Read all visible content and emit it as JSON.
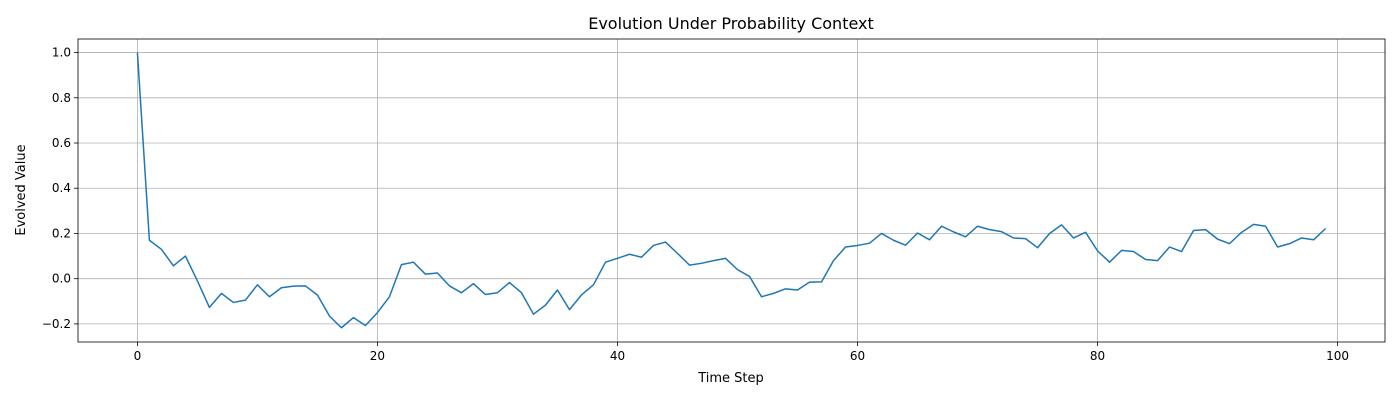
{
  "chart_data": {
    "type": "line",
    "title": "Evolution Under Probability Context",
    "xlabel": "Time Step",
    "ylabel": "Evolved Value",
    "xlim": [
      -4.95,
      103.95
    ],
    "ylim": [
      -0.28,
      1.06
    ],
    "xticks": [
      0,
      20,
      40,
      60,
      80,
      100
    ],
    "yticks": [
      -0.2,
      0.0,
      0.2,
      0.4,
      0.6,
      0.8,
      1.0
    ],
    "grid": true,
    "series_color": "#1f77b4",
    "x": [
      0,
      1,
      2,
      3,
      4,
      5,
      6,
      7,
      8,
      9,
      10,
      11,
      12,
      13,
      14,
      15,
      16,
      17,
      18,
      19,
      20,
      21,
      22,
      23,
      24,
      25,
      26,
      27,
      28,
      29,
      30,
      31,
      32,
      33,
      34,
      35,
      36,
      37,
      38,
      39,
      40,
      41,
      42,
      43,
      44,
      45,
      46,
      47,
      48,
      49,
      50,
      51,
      52,
      53,
      54,
      55,
      56,
      57,
      58,
      59,
      60,
      61,
      62,
      63,
      64,
      65,
      66,
      67,
      68,
      69,
      70,
      71,
      72,
      73,
      74,
      75,
      76,
      77,
      78,
      79,
      80,
      81,
      82,
      83,
      84,
      85,
      86,
      87,
      88,
      89,
      90,
      91,
      92,
      93,
      94,
      95,
      96,
      97,
      98,
      99
    ],
    "y": [
      1.0,
      0.17,
      0.13,
      0.057,
      0.1,
      -0.01,
      -0.127,
      -0.065,
      -0.105,
      -0.095,
      -0.027,
      -0.08,
      -0.04,
      -0.033,
      -0.032,
      -0.072,
      -0.165,
      -0.217,
      -0.172,
      -0.207,
      -0.15,
      -0.08,
      0.062,
      0.073,
      0.02,
      0.025,
      -0.032,
      -0.062,
      -0.022,
      -0.07,
      -0.062,
      -0.017,
      -0.062,
      -0.157,
      -0.117,
      -0.05,
      -0.137,
      -0.072,
      -0.027,
      0.073,
      0.09,
      0.108,
      0.095,
      0.147,
      0.162,
      0.112,
      0.06,
      0.068,
      0.08,
      0.09,
      0.04,
      0.01,
      -0.08,
      -0.065,
      -0.045,
      -0.05,
      -0.015,
      -0.014,
      0.08,
      0.14,
      0.147,
      0.157,
      0.2,
      0.17,
      0.148,
      0.202,
      0.172,
      0.232,
      0.207,
      0.185,
      0.232,
      0.217,
      0.208,
      0.18,
      0.177,
      0.137,
      0.2,
      0.238,
      0.18,
      0.205,
      0.123,
      0.073,
      0.125,
      0.12,
      0.085,
      0.08,
      0.14,
      0.12,
      0.213,
      0.217,
      0.175,
      0.155,
      0.205,
      0.24,
      0.232,
      0.14,
      0.155,
      0.18,
      0.172,
      0.222
    ]
  }
}
